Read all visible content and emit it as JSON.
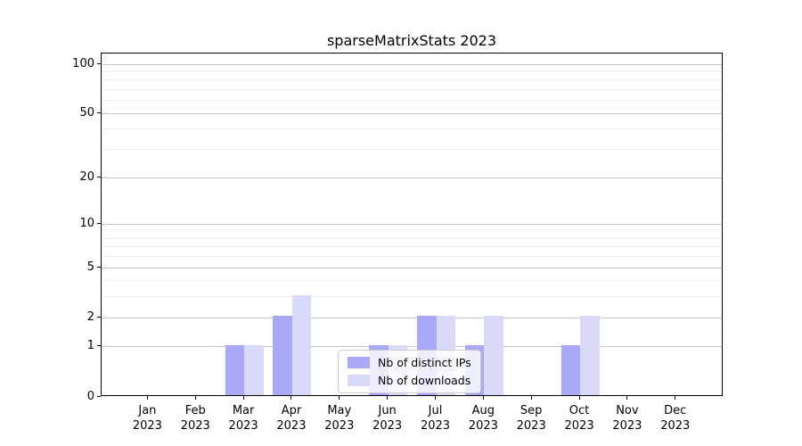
{
  "chart_data": {
    "type": "bar",
    "title": "sparseMatrixStats 2023",
    "categories": [
      "Jan",
      "Feb",
      "Mar",
      "Apr",
      "May",
      "Jun",
      "Jul",
      "Aug",
      "Sep",
      "Oct",
      "Nov",
      "Dec"
    ],
    "year": "2023",
    "series": [
      {
        "name": "Nb of distinct IPs",
        "color": "#a9a9f7",
        "values": [
          0,
          0,
          1,
          2,
          0,
          1,
          2,
          1,
          0,
          1,
          0,
          0
        ]
      },
      {
        "name": "Nb of downloads",
        "color": "#d9d9fa",
        "values": [
          0,
          0,
          1,
          3,
          0,
          1,
          2,
          2,
          0,
          2,
          0,
          0
        ]
      }
    ],
    "y_axis": {
      "scale": "log1p",
      "major_ticks": [
        0,
        1,
        2,
        5,
        10,
        20,
        50,
        100
      ],
      "minor_ticks": [
        3,
        4,
        6,
        7,
        8,
        9,
        30,
        40,
        60,
        70,
        80,
        90
      ],
      "ylim": [
        0,
        116
      ]
    },
    "x_axis": {
      "tick_label_format": "month over year"
    },
    "legend": {
      "position": "lower center",
      "background": "rgba(255,255,255,0.8)",
      "border_color": "#cccccc"
    },
    "grid": {
      "major_color": "#c8c8c8",
      "minor_color": "#ededed"
    }
  }
}
